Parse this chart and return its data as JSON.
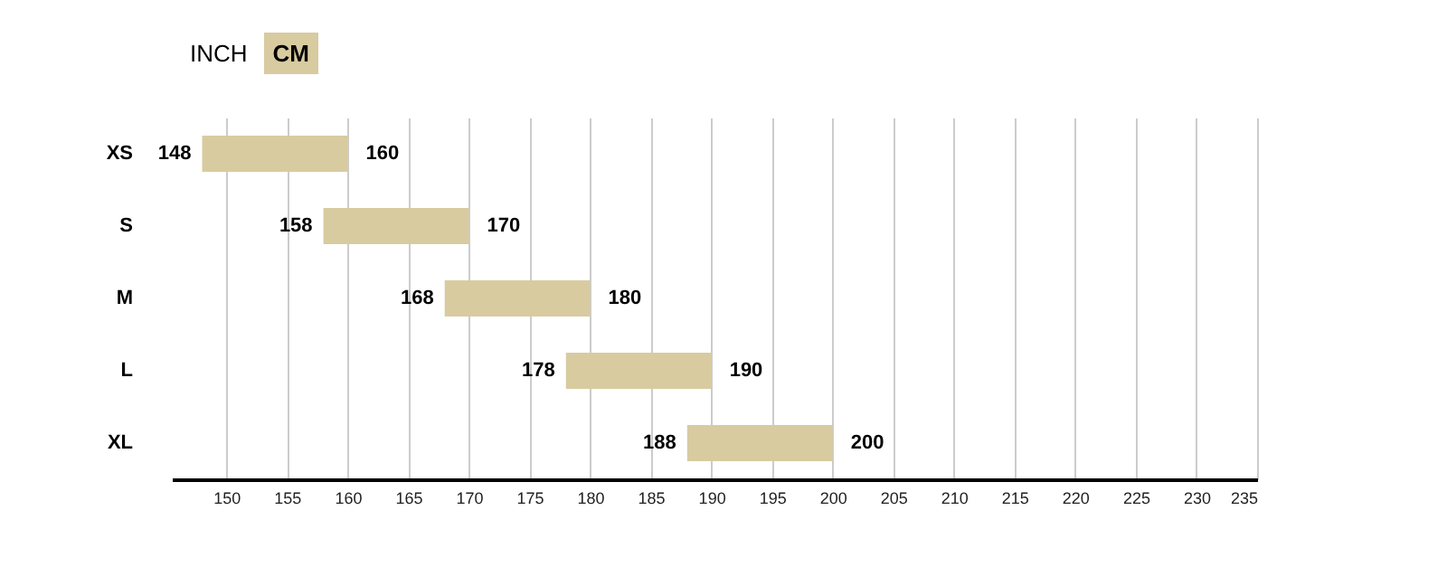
{
  "chart_data": {
    "type": "bar",
    "orientation": "horizontal",
    "categories": [
      "XS",
      "S",
      "M",
      "L",
      "XL"
    ],
    "base": [
      148,
      158,
      168,
      178,
      188
    ],
    "values": [
      12,
      12,
      12,
      12,
      12
    ],
    "color": "#d8cba0",
    "xlim": [
      145.5,
      235
    ],
    "xticks": [
      150,
      155,
      160,
      165,
      170,
      175,
      180,
      185,
      190,
      195,
      200,
      205,
      210,
      215,
      220,
      225,
      230,
      235
    ],
    "grid": "x",
    "annotations": [
      "INCH",
      "CM",
      {
        "text": "148",
        "x": 148,
        "y": "XS"
      },
      {
        "text": "160",
        "x": 160,
        "y": "XS"
      },
      {
        "text": "158",
        "x": 158,
        "y": "S"
      },
      {
        "text": "170",
        "x": 170,
        "y": "S"
      },
      {
        "text": "168",
        "x": 168,
        "y": "M"
      },
      {
        "text": "180",
        "x": 180,
        "y": "M"
      },
      {
        "text": "178",
        "x": 178,
        "y": "L"
      },
      {
        "text": "190",
        "x": 190,
        "y": "L"
      },
      {
        "text": "188",
        "x": 188,
        "y": "XL"
      },
      {
        "text": "200",
        "x": 200,
        "y": "XL"
      }
    ]
  }
}
